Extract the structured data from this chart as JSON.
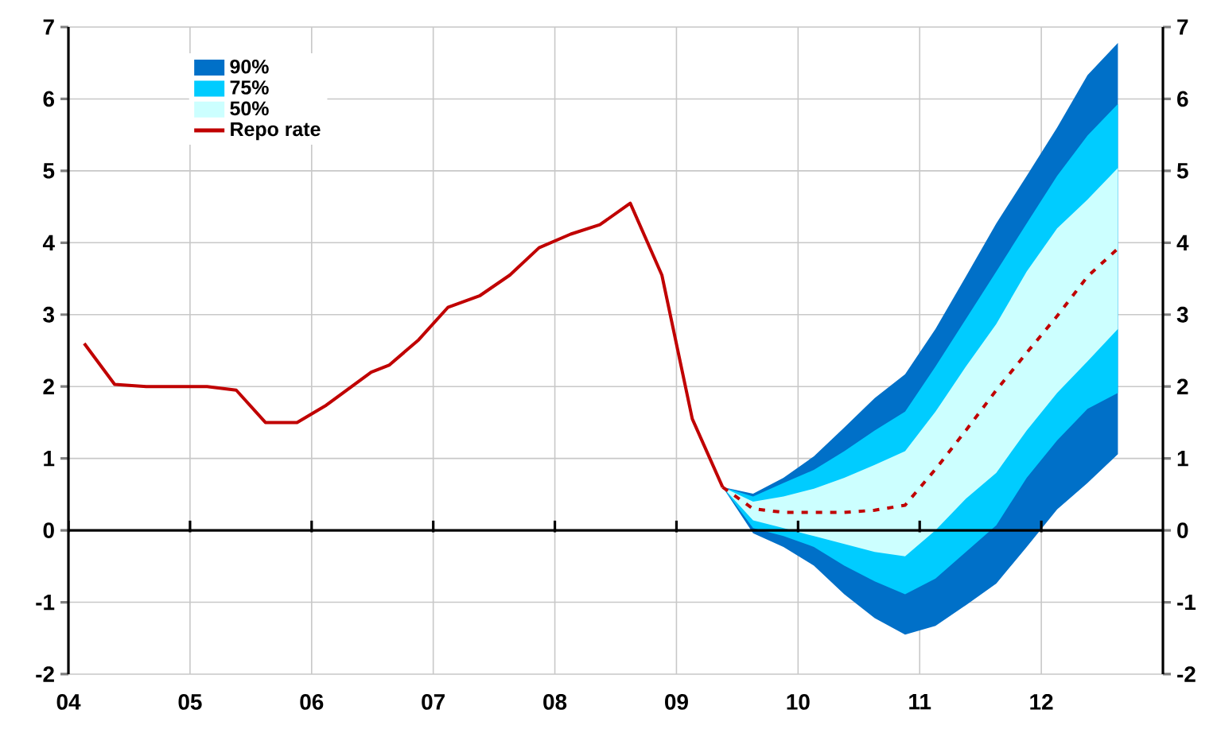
{
  "chart_data": {
    "type": "line",
    "xlim": [
      2004,
      2013
    ],
    "xticks": [
      {
        "value": 2004,
        "label": "04"
      },
      {
        "value": 2005,
        "label": "05"
      },
      {
        "value": 2006,
        "label": "06"
      },
      {
        "value": 2007,
        "label": "07"
      },
      {
        "value": 2008,
        "label": "08"
      },
      {
        "value": 2009,
        "label": "09"
      },
      {
        "value": 2010,
        "label": "10"
      },
      {
        "value": 2011,
        "label": "11"
      },
      {
        "value": 2012,
        "label": "12"
      }
    ],
    "ylim": [
      -2,
      7
    ],
    "yticks": [
      -2,
      -1,
      0,
      1,
      2,
      3,
      4,
      5,
      6,
      7
    ],
    "y2lim": [
      -2,
      7
    ],
    "y2ticks": [
      -2,
      -1,
      0,
      1,
      2,
      3,
      4,
      5,
      6,
      7
    ],
    "grid": true,
    "legend": "top left",
    "series": [
      {
        "name": "90%",
        "type": "area",
        "color": "#0070c8",
        "x": [
          2009.38,
          2009.63,
          2009.88,
          2010.13,
          2010.38,
          2010.63,
          2010.88,
          2011.13,
          2011.38,
          2011.63,
          2011.88,
          2012.13,
          2012.38,
          2012.63
        ],
        "values": [
          null,
          null,
          null,
          null,
          null,
          null,
          null,
          null,
          null,
          null,
          null,
          null,
          null,
          null
        ],
        "upper": [
          0.6,
          0.51,
          0.73,
          1.03,
          1.43,
          1.84,
          2.17,
          2.8,
          3.53,
          4.27,
          4.93,
          5.6,
          6.33,
          6.78
        ],
        "lower": [
          0.6,
          -0.04,
          -0.23,
          -0.49,
          -0.89,
          -1.22,
          -1.45,
          -1.33,
          -1.04,
          -0.74,
          -0.23,
          0.29,
          0.66,
          1.06
        ]
      },
      {
        "name": "75%",
        "type": "area",
        "color": "#00ccff",
        "x": [
          2009.38,
          2009.63,
          2009.88,
          2010.13,
          2010.38,
          2010.63,
          2010.88,
          2011.13,
          2011.38,
          2011.63,
          2011.88,
          2012.13,
          2012.38,
          2012.63
        ],
        "values": [
          null,
          null,
          null,
          null,
          null,
          null,
          null,
          null,
          null,
          null,
          null,
          null,
          null,
          null
        ],
        "upper": [
          0.6,
          0.47,
          0.66,
          0.84,
          1.1,
          1.39,
          1.65,
          2.28,
          2.94,
          3.6,
          4.27,
          4.93,
          5.49,
          5.93
        ],
        "lower": [
          0.6,
          0.03,
          -0.08,
          -0.23,
          -0.49,
          -0.71,
          -0.89,
          -0.67,
          -0.3,
          0.07,
          0.73,
          1.25,
          1.69,
          1.91
        ]
      },
      {
        "name": "50%",
        "type": "area",
        "color": "#ccffff",
        "x": [
          2009.38,
          2009.63,
          2009.88,
          2010.13,
          2010.38,
          2010.63,
          2010.88,
          2011.13,
          2011.38,
          2011.63,
          2011.88,
          2012.13,
          2012.38,
          2012.63
        ],
        "values": [
          null,
          null,
          null,
          null,
          null,
          null,
          null,
          null,
          null,
          null,
          null,
          null,
          null,
          null
        ],
        "upper": [
          0.6,
          0.4,
          0.47,
          0.58,
          0.73,
          0.91,
          1.1,
          1.65,
          2.28,
          2.87,
          3.6,
          4.2,
          4.6,
          5.04
        ],
        "lower": [
          0.6,
          0.14,
          0.03,
          -0.08,
          -0.19,
          -0.3,
          -0.36,
          0.0,
          0.44,
          0.8,
          1.39,
          1.91,
          2.35,
          2.8
        ]
      },
      {
        "name": "Repo rate",
        "type": "line",
        "color": "#c00000",
        "line_style": "solid",
        "x": [
          2004.13,
          2004.38,
          2004.64,
          2005.14,
          2005.38,
          2005.62,
          2005.88,
          2006.12,
          2006.49,
          2006.64,
          2006.88,
          2007.12,
          2007.38,
          2007.63,
          2007.87,
          2008.13,
          2008.37,
          2008.62,
          2008.88,
          2009.13,
          2009.38
        ],
        "values": [
          2.6,
          2.03,
          2.0,
          2.0,
          1.95,
          1.5,
          1.5,
          1.74,
          2.2,
          2.3,
          2.65,
          3.1,
          3.26,
          3.55,
          3.93,
          4.12,
          4.25,
          4.55,
          3.55,
          1.55,
          0.6
        ]
      },
      {
        "type": "line",
        "color": "#c00000",
        "line_style": "dashed",
        "x": [
          2009.38,
          2009.63,
          2009.88,
          2010.13,
          2010.38,
          2010.63,
          2010.88,
          2011.13,
          2011.38,
          2011.63,
          2011.88,
          2012.13,
          2012.38,
          2012.63
        ],
        "values": [
          0.6,
          0.3,
          0.25,
          0.25,
          0.25,
          0.28,
          0.35,
          0.85,
          1.39,
          1.95,
          2.47,
          2.98,
          3.53,
          3.92
        ]
      }
    ]
  }
}
